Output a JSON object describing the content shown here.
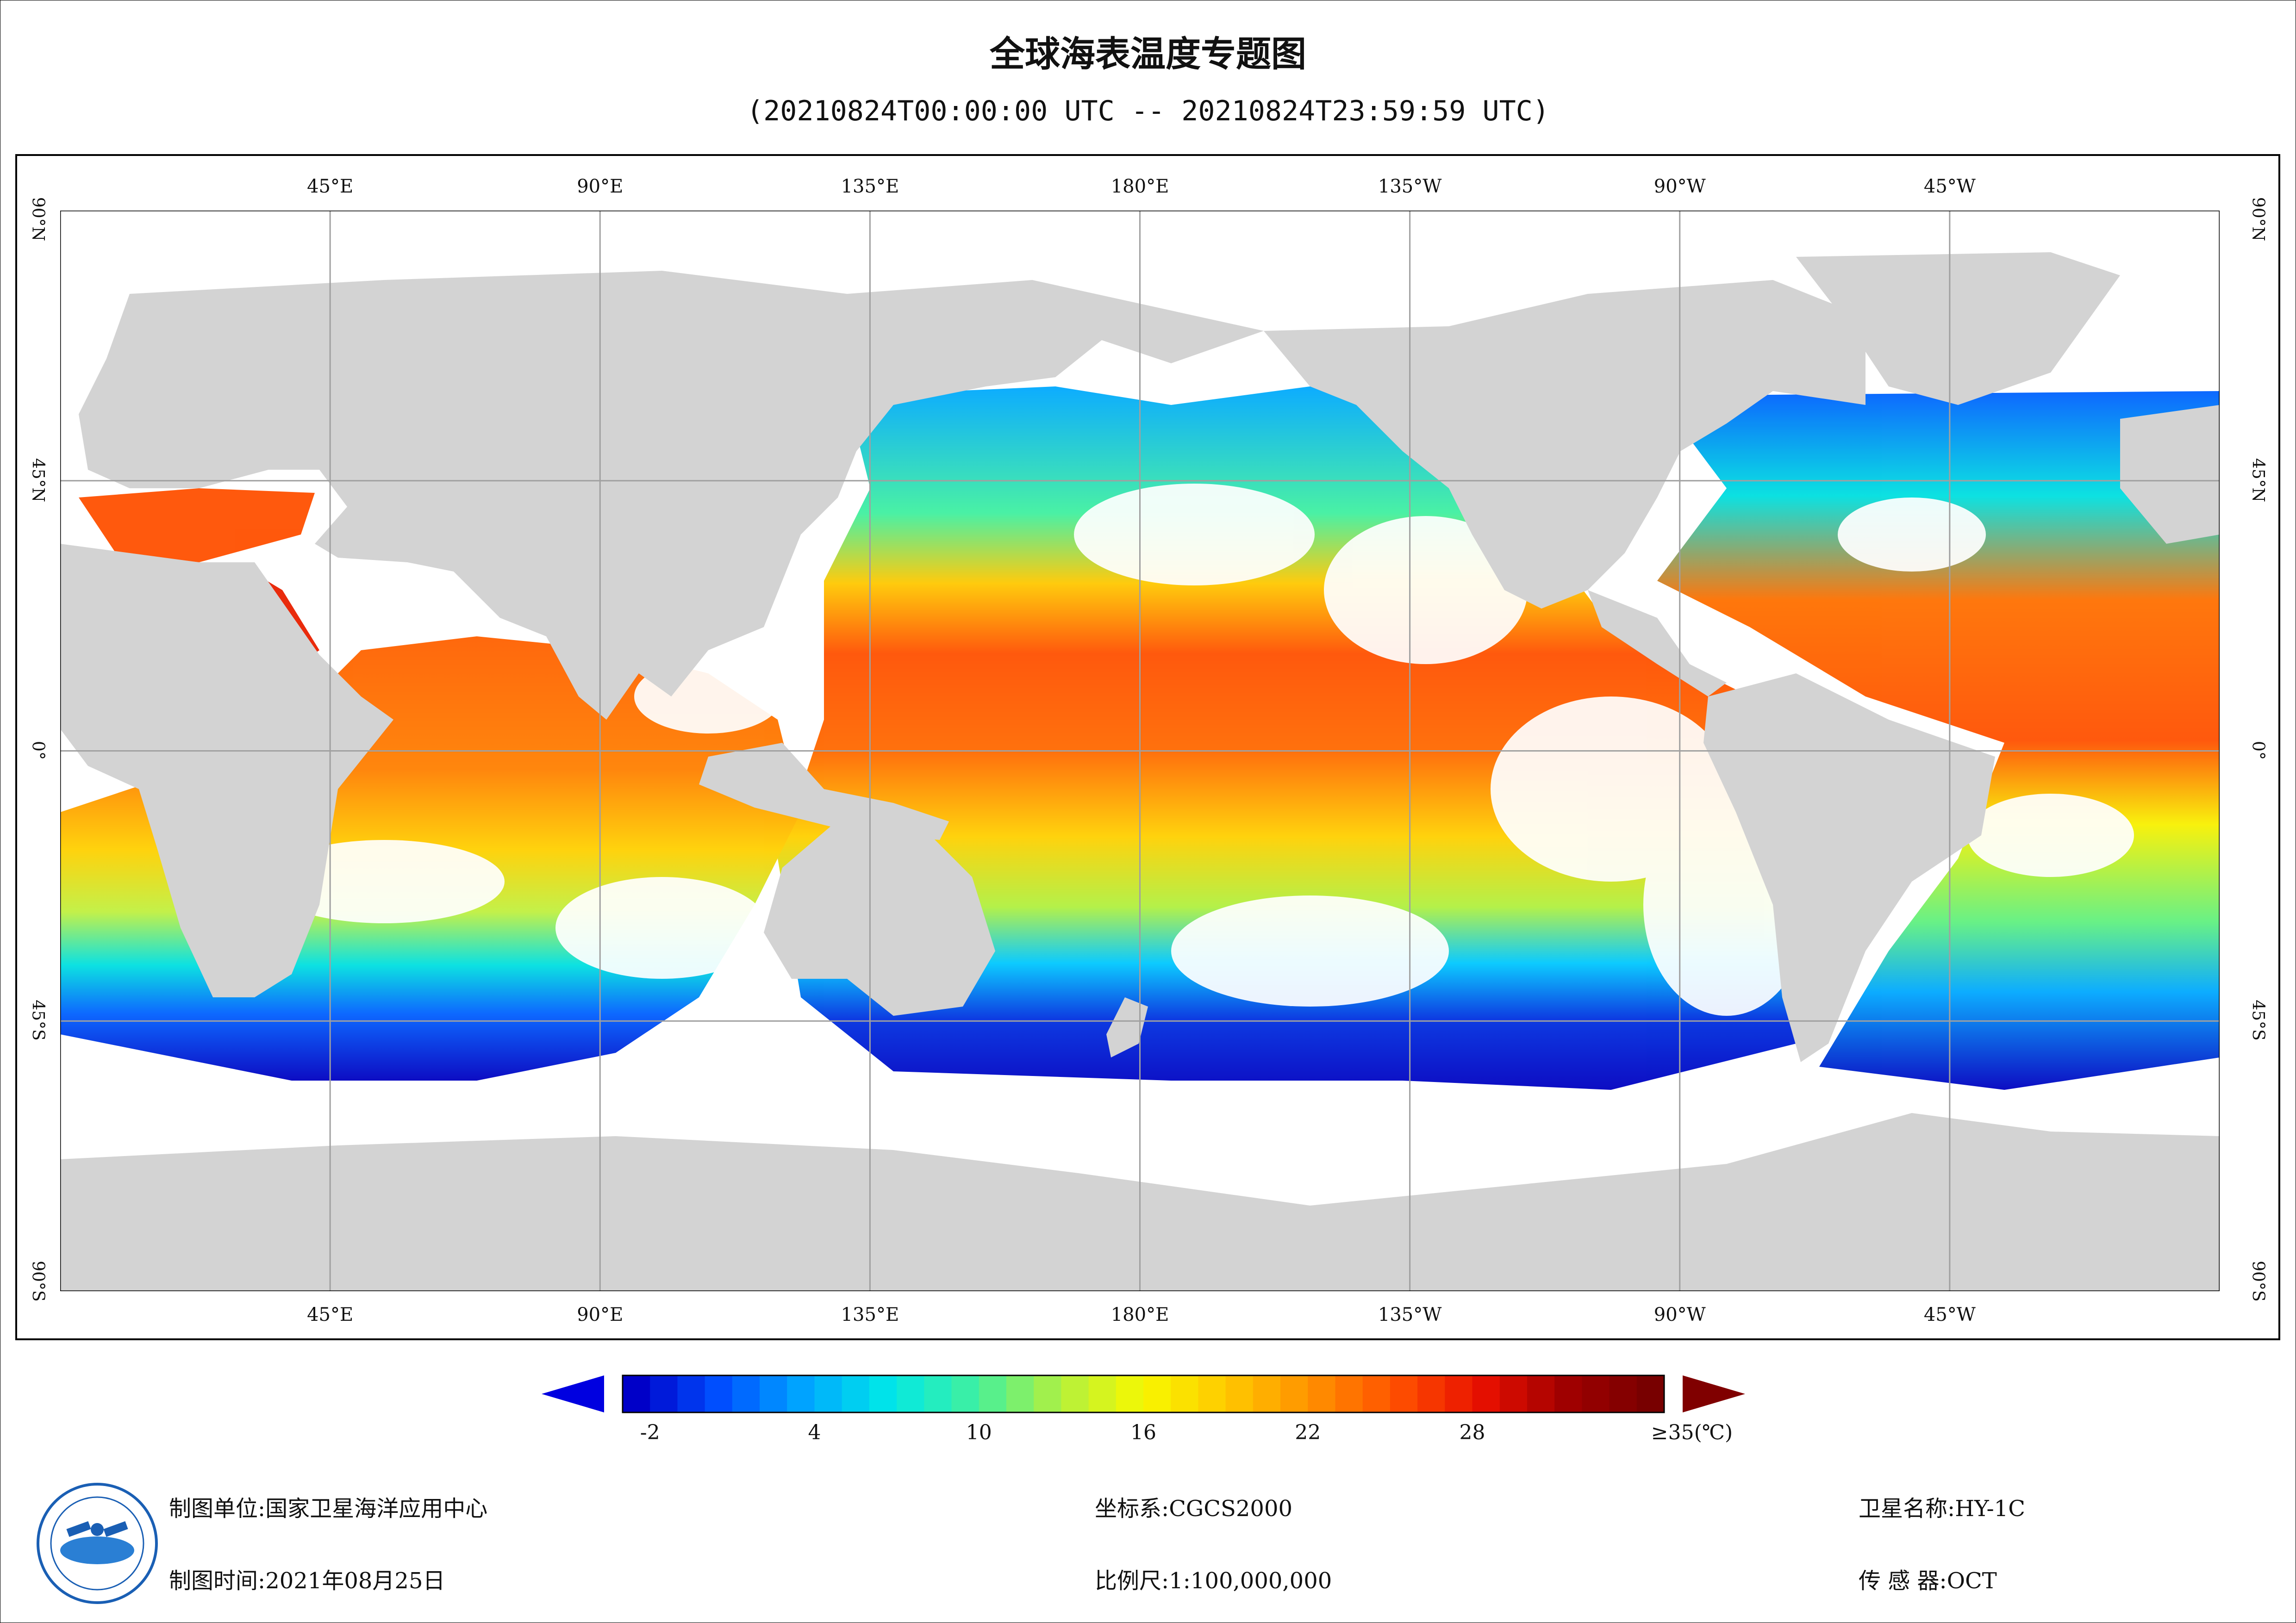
{
  "title": "全球海表温度专题图",
  "subtitle": "(20210824T00:00:00 UTC -- 20210824T23:59:59 UTC)",
  "map": {
    "lon_labels": [
      {
        "text": "45°E",
        "lon": 45
      },
      {
        "text": "90°E",
        "lon": 90
      },
      {
        "text": "135°E",
        "lon": 135
      },
      {
        "text": "180°E",
        "lon": 180
      },
      {
        "text": "135°W",
        "lon": 225
      },
      {
        "text": "90°W",
        "lon": 270
      },
      {
        "text": "45°W",
        "lon": 315
      }
    ],
    "lat_labels": [
      {
        "text": "90°N",
        "lat": 90
      },
      {
        "text": "45°N",
        "lat": 45
      },
      {
        "text": "0°",
        "lat": 0
      },
      {
        "text": "45°S",
        "lat": -45
      },
      {
        "text": "90°S",
        "lat": -90
      }
    ],
    "land_color": "#d3d3d3",
    "no_data_color": "#ffffff",
    "grid_color": "#a0a0a0"
  },
  "colorbar": {
    "tick_labels": [
      {
        "text": "-2",
        "value": -2
      },
      {
        "text": "4",
        "value": 4
      },
      {
        "text": "10",
        "value": 10
      },
      {
        "text": "16",
        "value": 16
      },
      {
        "text": "22",
        "value": 22
      },
      {
        "text": "28",
        "value": 28
      },
      {
        "text": "≥35(℃)",
        "value": 35
      }
    ],
    "min": -3,
    "max": 35,
    "colors": [
      "#0000c8",
      "#0050ff",
      "#00a8ff",
      "#00e8e8",
      "#40f0a0",
      "#b0f040",
      "#f8f800",
      "#ffc800",
      "#ff9000",
      "#ff5000",
      "#e81000",
      "#a00000",
      "#780000"
    ],
    "under_color": "#0000e0",
    "over_color": "#800000"
  },
  "footer": {
    "org_label": "制图单位:",
    "org_value": "国家卫星海洋应用中心",
    "time_label": "制图时间:",
    "time_value": "2021年08月25日",
    "crs_label": "坐标系:",
    "crs_value": "CGCS2000",
    "scale_label": "比例尺:",
    "scale_value": "1:100,000,000",
    "sat_label": "卫星名称:",
    "sat_value": "HY-1C",
    "sensor_label": "传 感 器:",
    "sensor_value": "OCT"
  }
}
